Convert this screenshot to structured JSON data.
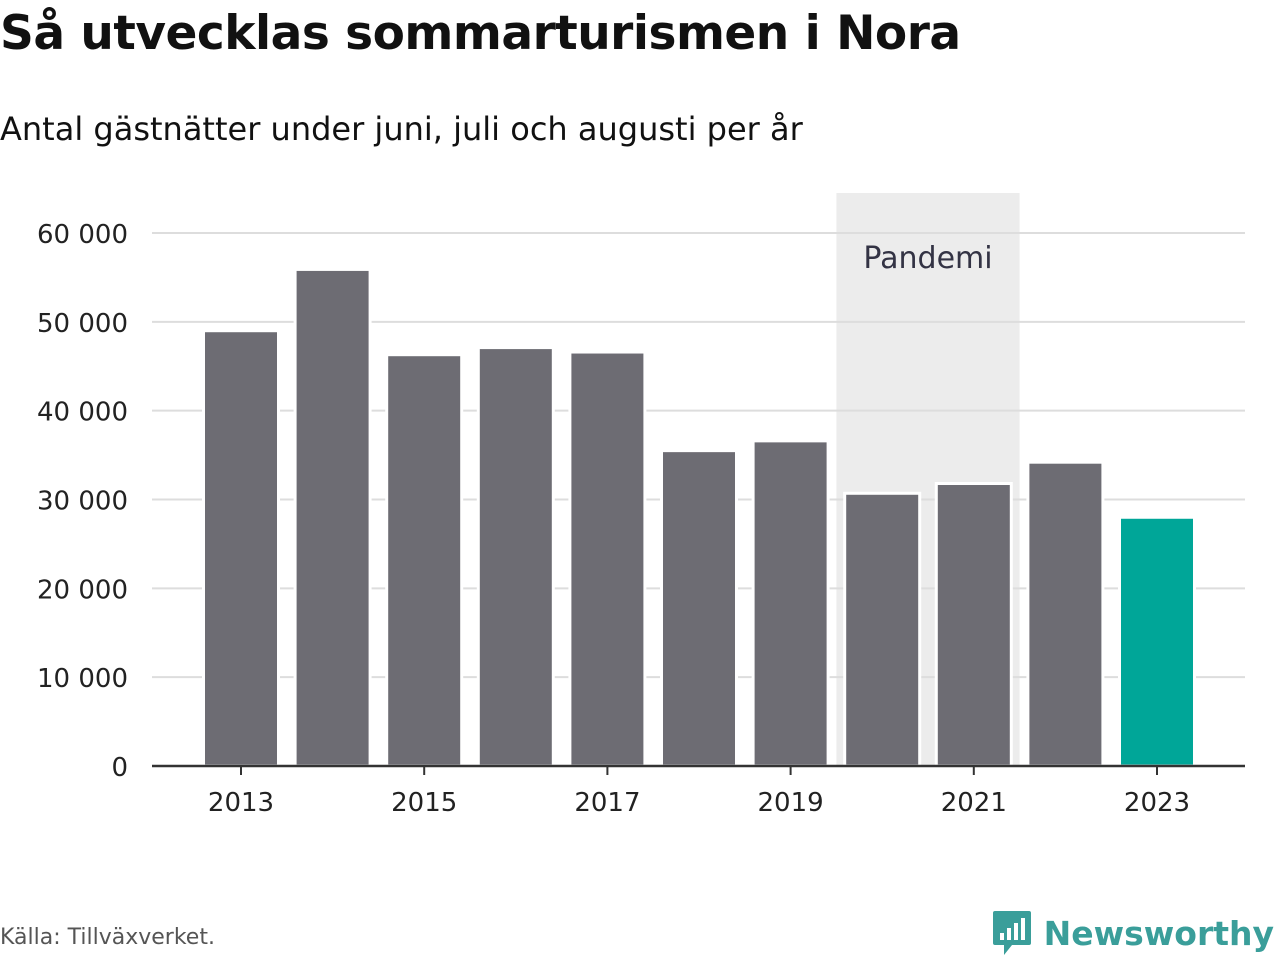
{
  "title": "Så utvecklas sommarturismen i Nora",
  "subtitle": "Antal gästnätter under juni, juli och augusti per år",
  "source": "Källa: Tillväxverket.",
  "brand": "Newsworthy",
  "colors": {
    "bar": "#6d6c73",
    "highlight": "#00a698",
    "shade": "#ececec",
    "grid": "#dddddd",
    "axis": "#333333",
    "brand": "#3a9e9a"
  },
  "chart_data": {
    "type": "bar",
    "categories": [
      "2013",
      "2014",
      "2015",
      "2016",
      "2017",
      "2018",
      "2019",
      "2020",
      "2021",
      "2022",
      "2023"
    ],
    "values": [
      49000,
      55900,
      46300,
      47100,
      46600,
      35500,
      36600,
      30700,
      31800,
      34200,
      28000
    ],
    "highlight_index": 10,
    "x_tick_labels": [
      "2013",
      "2015",
      "2017",
      "2019",
      "2021",
      "2023"
    ],
    "ylim": [
      0,
      60000
    ],
    "y_ticks": [
      0,
      10000,
      20000,
      30000,
      40000,
      50000,
      60000
    ],
    "y_tick_labels": [
      "0",
      "10 000",
      "20 000",
      "30 000",
      "40 000",
      "50 000",
      "60 000"
    ],
    "grid": true,
    "xlabel": "",
    "ylabel": "",
    "annotation": {
      "label": "Pandemi",
      "from": "2020",
      "to": "2021"
    }
  }
}
